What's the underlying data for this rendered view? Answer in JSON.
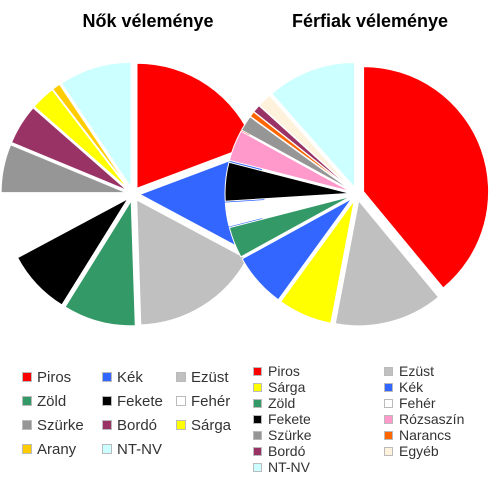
{
  "chart_data": [
    {
      "type": "pie",
      "title": "Nők véleménye",
      "categories": [
        "Piros",
        "Kék",
        "Ezüst",
        "Zöld",
        "Fekete",
        "Fehér",
        "Szürke",
        "Bordó",
        "Sárga",
        "Arany",
        "NT-NV"
      ],
      "values": [
        18.5,
        13,
        16,
        9,
        8,
        7.5,
        6,
        5,
        3,
        1,
        9
      ],
      "colors": [
        "#ff0000",
        "#3366ff",
        "#c0c0c0",
        "#339966",
        "#000000",
        "#ffffff",
        "#969696",
        "#993366",
        "#ffff00",
        "#ffcc00",
        "#ccffff"
      ],
      "exploded": [
        "Piros",
        "Kék",
        "Ezüst",
        "Zöld",
        "Fekete",
        "Fehér",
        "Szürke",
        "Bordó",
        "Sárga",
        "Arany",
        "NT-NV"
      ],
      "legend": "bottom"
    },
    {
      "type": "pie",
      "title": "Férfiak véleménye",
      "categories": [
        "Piros",
        "Ezüst",
        "Sárga",
        "Kék",
        "Zöld",
        "Fehér",
        "Fekete",
        "Rózsaszín",
        "Szürke",
        "Narancs",
        "Bordó",
        "Egyéb",
        "NT-NV"
      ],
      "values": [
        39,
        14,
        7,
        7,
        4,
        3,
        5,
        4,
        2,
        0.7,
        1,
        1.8,
        11.5
      ],
      "colors": [
        "#ff0000",
        "#c0c0c0",
        "#ffff00",
        "#3366ff",
        "#339966",
        "#ffffff",
        "#000000",
        "#ff99cc",
        "#969696",
        "#ff6600",
        "#993366",
        "#fff2dd",
        "#ccffff"
      ],
      "exploded": [
        "Piros",
        "Ezüst",
        "Sárga",
        "Kék",
        "Zöld",
        "Fehér",
        "Fekete",
        "Rózsaszín",
        "Szürke",
        "Narancs",
        "Bordó",
        "Egyéb",
        "NT-NV"
      ],
      "legend": "bottom"
    }
  ]
}
